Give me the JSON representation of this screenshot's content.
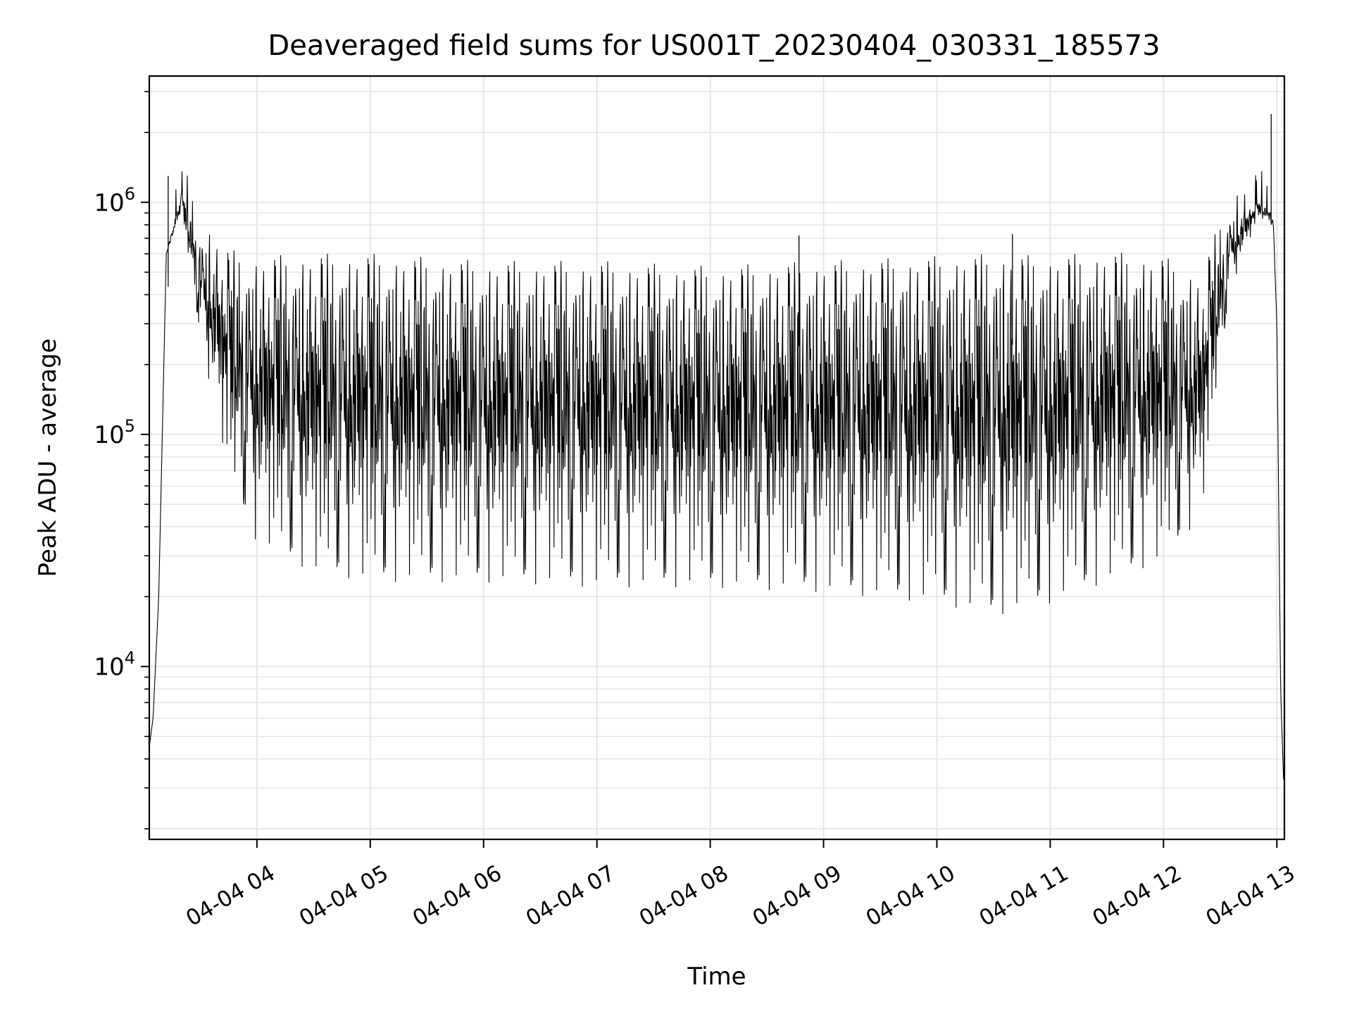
{
  "chart_data": {
    "type": "line",
    "title": "Deaveraged field sums for US001T_20230404_030331_185573",
    "xlabel": "Time",
    "ylabel": "Peak ADU - average",
    "yscale": "log",
    "grid": true,
    "line_color": "#000000",
    "grid_color": "#e6e6e6",
    "xlim": [
      "2023-04-04 03:03",
      "2023-04-04 13:04"
    ],
    "ylim": [
      1800,
      3500000
    ],
    "x_ticks": [
      {
        "value": "2023-04-04 04:00",
        "label": "04-04 04"
      },
      {
        "value": "2023-04-04 05:00",
        "label": "04-04 05"
      },
      {
        "value": "2023-04-04 06:00",
        "label": "04-04 06"
      },
      {
        "value": "2023-04-04 07:00",
        "label": "04-04 07"
      },
      {
        "value": "2023-04-04 08:00",
        "label": "04-04 08"
      },
      {
        "value": "2023-04-04 09:00",
        "label": "04-04 09"
      },
      {
        "value": "2023-04-04 10:00",
        "label": "04-04 10"
      },
      {
        "value": "2023-04-04 11:00",
        "label": "04-04 11"
      },
      {
        "value": "2023-04-04 12:00",
        "label": "04-04 12"
      },
      {
        "value": "2023-04-04 13:00",
        "label": "04-04 13"
      }
    ],
    "y_ticks": [
      {
        "value": 10000,
        "base": "10",
        "exp": "4"
      },
      {
        "value": 100000,
        "base": "10",
        "exp": "5"
      },
      {
        "value": 1000000,
        "base": "10",
        "exp": "6"
      }
    ],
    "envelope": {
      "x": [
        "2023-04-04 03:03",
        "2023-04-04 03:05",
        "2023-04-04 03:08",
        "2023-04-04 03:12",
        "2023-04-04 03:20",
        "2023-04-04 03:30",
        "2023-04-04 03:45",
        "2023-04-04 04:00",
        "2023-04-04 04:30",
        "2023-04-04 05:00",
        "2023-04-04 06:00",
        "2023-04-04 07:00",
        "2023-04-04 08:00",
        "2023-04-04 09:00",
        "2023-04-04 10:00",
        "2023-04-04 10:30",
        "2023-04-04 11:00",
        "2023-04-04 11:30",
        "2023-04-04 12:00",
        "2023-04-04 12:20",
        "2023-04-04 12:35",
        "2023-04-04 12:50",
        "2023-04-04 12:58",
        "2023-04-04 13:00",
        "2023-04-04 13:02",
        "2023-04-04 13:04"
      ],
      "upper": [
        4500,
        6000,
        20000,
        600000,
        1100000,
        650000,
        450000,
        420000,
        430000,
        430000,
        400000,
        400000,
        380000,
        400000,
        420000,
        430000,
        420000,
        440000,
        420000,
        350000,
        800000,
        1000000,
        900000,
        300000,
        8000,
        2500
      ],
      "lower": [
        4500,
        6000,
        20000,
        600000,
        900000,
        250000,
        60000,
        30000,
        22000,
        20000,
        20000,
        19000,
        19000,
        18000,
        16000,
        14000,
        16000,
        20000,
        25000,
        40000,
        400000,
        850000,
        800000,
        300000,
        8000,
        2500
      ]
    },
    "annotation_peaks": [
      {
        "x": "2023-04-04 03:13",
        "y": 1300000
      },
      {
        "x": "2023-04-04 08:47",
        "y": 720000
      },
      {
        "x": "2023-04-04 10:40",
        "y": 730000
      },
      {
        "x": "2023-04-04 12:57",
        "y": 2400000
      }
    ]
  }
}
